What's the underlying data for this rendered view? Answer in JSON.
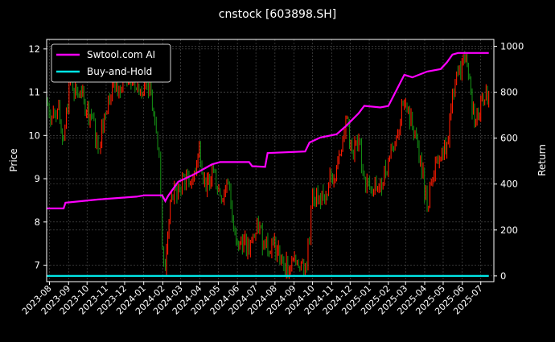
{
  "chart_data": {
    "type": "line",
    "title": "cnstock [603898.SH]",
    "ylabel_left": "Price",
    "ylabel_right": "Return",
    "ylim_left": [
      6.62,
      12.22
    ],
    "ylim_right": [
      -25,
      1030
    ],
    "left_ticks": [
      "7",
      "8",
      "9",
      "10",
      "11",
      "12"
    ],
    "right_ticks": [
      "0",
      "200",
      "400",
      "600",
      "800",
      "1000"
    ],
    "x_ticks": [
      "2023-08",
      "2023-09",
      "2023-10",
      "2023-11",
      "2023-12",
      "2024-01",
      "2024-02",
      "2024-03",
      "2024-04",
      "2024-05",
      "2024-06",
      "2024-07",
      "2024-08",
      "2024-09",
      "2024-10",
      "2024-11",
      "2024-12",
      "2025-01",
      "2025-02",
      "2025-03",
      "2025-04",
      "2025-05",
      "2025-06",
      "2025-07"
    ],
    "grid": true,
    "legend_position": "top-left",
    "colors": {
      "background": "#000000",
      "up": "#ff1a00",
      "down": "#138a13",
      "strategy": "#ff00ff",
      "benchmark": "#00e5e5",
      "grid": "#555555"
    },
    "price": {
      "dates": [
        "2023-07-27",
        "2023-08-05",
        "2023-08-14",
        "2023-08-24",
        "2023-09-04",
        "2023-09-14",
        "2023-09-26",
        "2023-10-10",
        "2023-10-19",
        "2023-10-29",
        "2023-11-11",
        "2023-11-24",
        "2023-12-07",
        "2023-12-20",
        "2024-01-02",
        "2024-01-13",
        "2024-01-19",
        "2024-01-26",
        "2024-01-31",
        "2024-02-05",
        "2024-02-13",
        "2024-02-26",
        "2024-03-10",
        "2024-03-21",
        "2024-03-31",
        "2024-04-11",
        "2024-04-21",
        "2024-05-04",
        "2024-05-17",
        "2024-05-28",
        "2024-06-07",
        "2024-06-20",
        "2024-07-03",
        "2024-07-16",
        "2024-07-29",
        "2024-08-11",
        "2024-08-24",
        "2024-09-06",
        "2024-09-19",
        "2024-09-26",
        "2024-10-01",
        "2024-10-14",
        "2024-10-27",
        "2024-11-09",
        "2024-11-19",
        "2024-11-24",
        "2024-12-04",
        "2024-12-15",
        "2024-12-24",
        "2025-01-06",
        "2025-01-19",
        "2025-02-01",
        "2025-02-14",
        "2025-02-27",
        "2025-03-12",
        "2025-03-25",
        "2025-04-05",
        "2025-04-14",
        "2025-04-27",
        "2025-05-07",
        "2025-05-16",
        "2025-05-25",
        "2025-06-05",
        "2025-06-15",
        "2025-06-21",
        "2025-07-01",
        "2025-07-14"
      ],
      "close": [
        10.8,
        10.4,
        10.6,
        9.9,
        11.3,
        11.0,
        10.8,
        10.4,
        9.7,
        10.5,
        11.2,
        11.0,
        11.3,
        11.1,
        11.2,
        11.0,
        10.3,
        9.5,
        7.4,
        6.9,
        8.5,
        8.8,
        9.1,
        9.0,
        9.8,
        8.7,
        9.3,
        8.6,
        8.9,
        7.8,
        7.6,
        7.3,
        8.0,
        7.4,
        7.5,
        7.2,
        6.9,
        7.1,
        7.0,
        7.5,
        8.7,
        8.4,
        8.9,
        9.3,
        9.9,
        10.4,
        9.6,
        9.9,
        9.0,
        8.7,
        8.9,
        9.4,
        10.0,
        10.7,
        10.2,
        9.5,
        8.3,
        9.0,
        9.5,
        9.8,
        11.0,
        11.4,
        11.8,
        11.0,
        10.2,
        10.8,
        10.9
      ]
    },
    "series": [
      {
        "name": "Swtool.com AI",
        "dates": [
          "2023-07-27",
          "2023-08-24",
          "2023-08-27",
          "2023-10-19",
          "2023-12-20",
          "2024-01-02",
          "2024-01-31",
          "2024-02-05",
          "2024-02-10",
          "2024-02-26",
          "2024-03-21",
          "2024-04-21",
          "2024-05-04",
          "2024-06-20",
          "2024-06-25",
          "2024-07-16",
          "2024-07-20",
          "2024-09-19",
          "2024-09-26",
          "2024-10-14",
          "2024-11-09",
          "2024-11-24",
          "2024-12-15",
          "2024-12-24",
          "2025-01-19",
          "2025-02-01",
          "2025-02-27",
          "2025-03-12",
          "2025-04-05",
          "2025-04-27",
          "2025-05-07",
          "2025-05-16",
          "2025-05-25",
          "2025-07-14"
        ],
        "values": [
          294,
          294,
          319,
          333,
          345,
          351,
          351,
          326,
          350,
          410,
          440,
          486,
          496,
          496,
          478,
          475,
          535,
          542,
          581,
          603,
          617,
          652,
          709,
          741,
          734,
          740,
          876,
          865,
          890,
          901,
          930,
          964,
          971,
          971
        ]
      },
      {
        "name": "Buy-and-Hold",
        "dates": [
          "2023-07-27",
          "2025-07-14"
        ],
        "values": [
          0,
          0
        ]
      }
    ]
  }
}
